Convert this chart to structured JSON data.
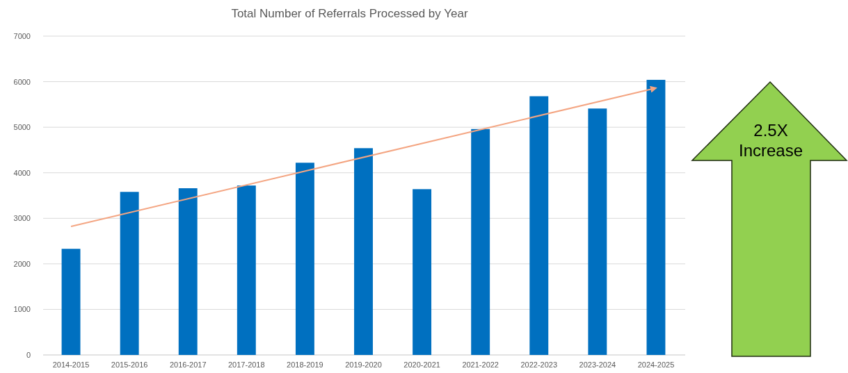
{
  "chart_data": {
    "type": "bar",
    "title": "Total Number of Referrals Processed by Year",
    "categories": [
      "2014-2015",
      "2015-2016",
      "2016-2017",
      "2017-2018",
      "2018-2019",
      "2019-2020",
      "2020-2021",
      "2021-2022",
      "2022-2023",
      "2023-2024",
      "2024-2025"
    ],
    "series": [
      {
        "color": "#0070c0",
        "values": [
          2330,
          3580,
          3660,
          3720,
          4220,
          4540,
          3640,
          4960,
          5680,
          5410,
          6040
        ]
      },
      {
        "type": "line",
        "color": "#f4a582",
        "x": [
          "2014-2015",
          "2024-2025"
        ],
        "values": [
          2820,
          5860
        ]
      }
    ],
    "ylim": [
      0,
      7000
    ],
    "yticks": [
      0,
      1000,
      2000,
      3000,
      4000,
      5000,
      6000,
      7000
    ],
    "grid": "y",
    "annotations": [
      "2.5X Increase"
    ]
  }
}
